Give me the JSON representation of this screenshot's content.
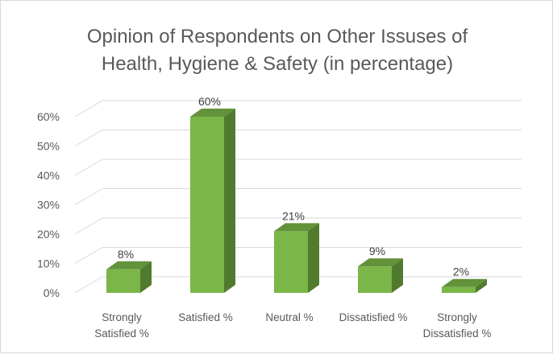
{
  "chart_data": {
    "type": "bar",
    "title_lines": [
      "Opinion of Respondents on Other Issuses of",
      "Health, Hygiene & Safety (in percentage)"
    ],
    "categories": [
      [
        "Strongly",
        "Satisfied %"
      ],
      [
        "Satisfied %"
      ],
      [
        "Neutral %"
      ],
      [
        "Dissatisfied %"
      ],
      [
        "Strongly",
        "Dissatisfied %"
      ]
    ],
    "values": [
      8,
      60,
      21,
      9,
      2
    ],
    "data_labels": [
      "8%",
      "60%",
      "21%",
      "9%",
      "2%"
    ],
    "y_ticks": [
      "0%",
      "10%",
      "20%",
      "30%",
      "40%",
      "50%",
      "60%"
    ],
    "ylim": [
      0,
      60
    ],
    "grid": true,
    "style": "3d-column",
    "legend": "none",
    "colors": {
      "bar_front": "#7ab648",
      "bar_side": "#507a2d",
      "bar_top": "#62923a",
      "grid": "#d9d9d9",
      "text": "#595959"
    }
  }
}
